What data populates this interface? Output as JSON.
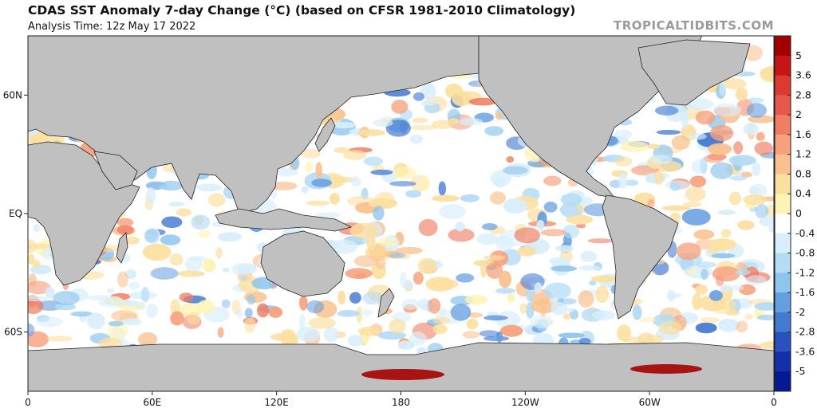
{
  "header": {
    "title": "CDAS SST Anomaly 7-day Change (°C) (based on CFSR 1981-2010 Climatology)",
    "analysis_time": "Analysis Time: 12z May 17 2022",
    "brand": "TROPICALTIDBITS.COM"
  },
  "map": {
    "x_ticks": [
      {
        "label": "0",
        "lon": 0
      },
      {
        "label": "60E",
        "lon": 60
      },
      {
        "label": "120E",
        "lon": 120
      },
      {
        "label": "180",
        "lon": 180
      },
      {
        "label": "120W",
        "lon": 240
      },
      {
        "label": "60W",
        "lon": 300
      },
      {
        "label": "0",
        "lon": 360
      }
    ],
    "y_ticks": [
      {
        "label": "60N",
        "lat": 60
      },
      {
        "label": "EQ",
        "lat": 0
      },
      {
        "label": "60S",
        "lat": -60
      }
    ],
    "lon_range": [
      0,
      360
    ],
    "lat_range": [
      -90,
      90
    ],
    "land_color": "#c0c0c0"
  },
  "colorbar": {
    "labels": [
      "5",
      "3.6",
      "2.8",
      "2",
      "1.6",
      "1.2",
      "0.8",
      "0.4",
      "0",
      "-0.4",
      "-0.8",
      "-1.2",
      "-1.6",
      "-2",
      "-2.8",
      "-3.6",
      "-5"
    ],
    "colors": [
      "#a50000",
      "#c51515",
      "#dc3a2e",
      "#e5584a",
      "#ef7d63",
      "#f6a07c",
      "#f9c18f",
      "#fbdf9f",
      "#fff3b3",
      "#ffffff",
      "#d8eefb",
      "#b4dcf5",
      "#8ec5ee",
      "#669fe0",
      "#4479d0",
      "#2a52bf",
      "#1230aa",
      "#051a92"
    ]
  }
}
